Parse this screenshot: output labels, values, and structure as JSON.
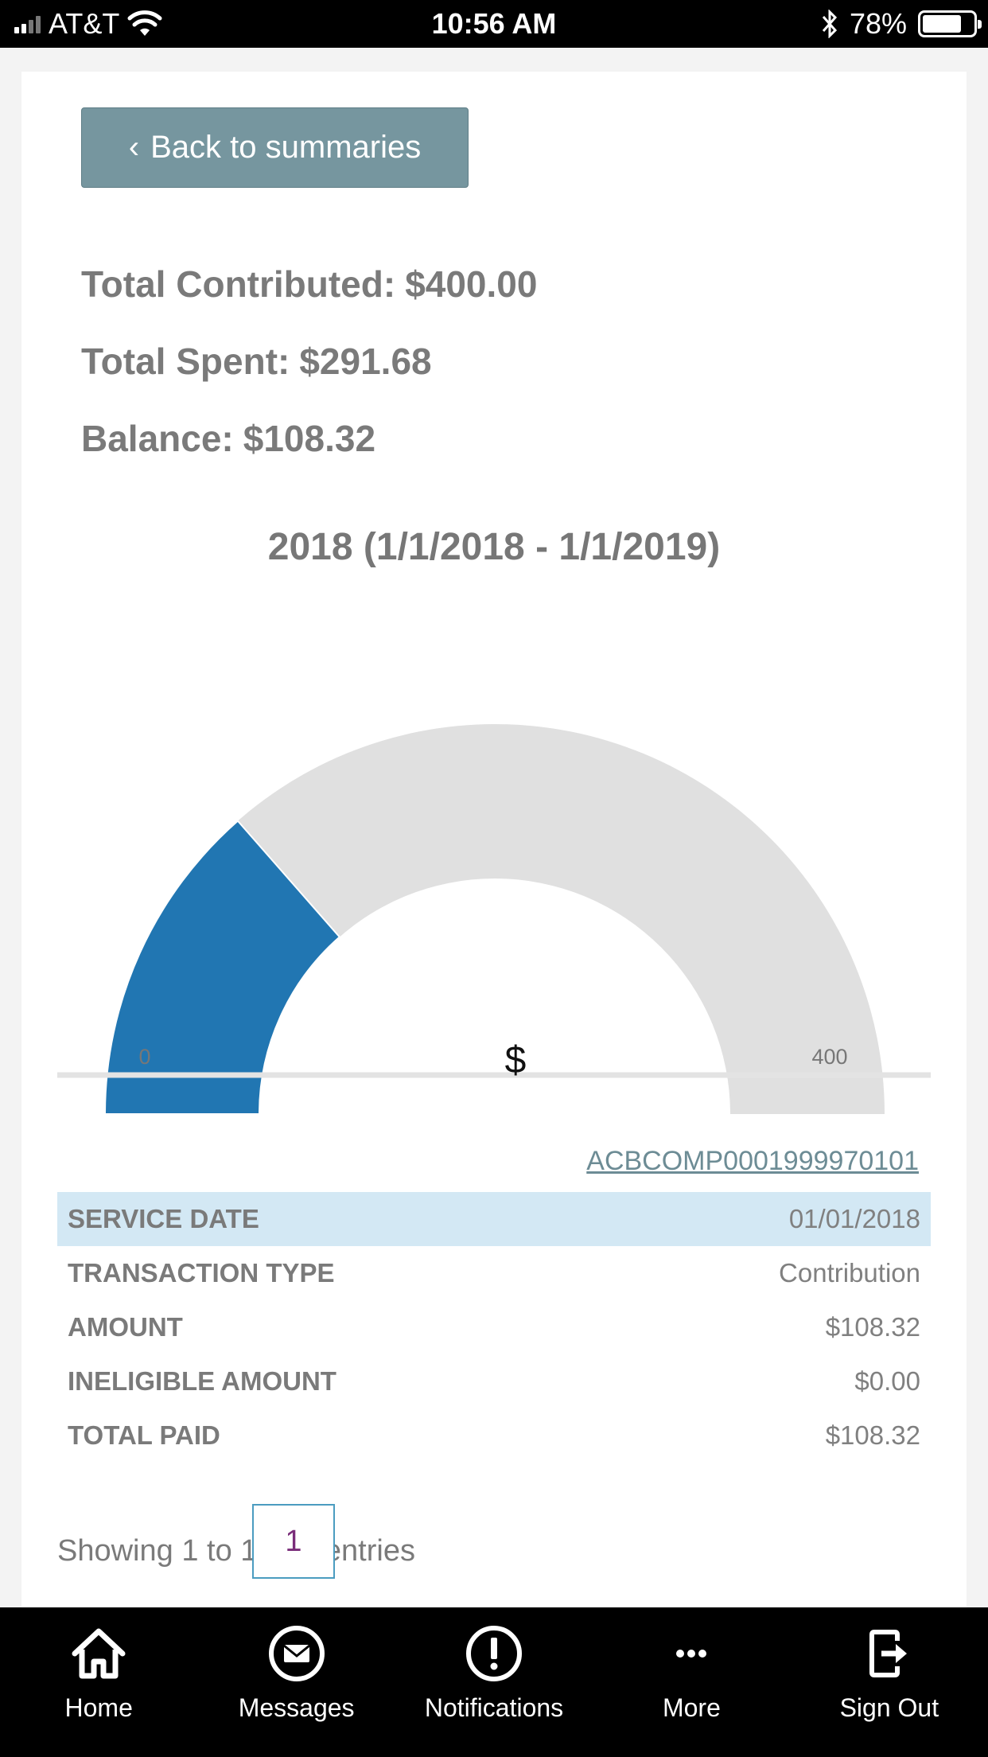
{
  "status_bar": {
    "carrier": "AT&T",
    "time": "10:56 AM",
    "battery": "78%",
    "battery_level": 0.78
  },
  "back_button": {
    "label": "Back to summaries"
  },
  "summary": {
    "contributed_label": "Total Contributed:",
    "contributed_value": "$400.00",
    "spent_label": "Total Spent:",
    "spent_value": "$291.68",
    "balance_label": "Balance:",
    "balance_value": "$108.32"
  },
  "period_title": "2018 (1/1/2018 - 1/1/2019)",
  "chart_data": {
    "type": "gauge",
    "min": 0,
    "max": 400,
    "value": 108.32,
    "min_label": "0",
    "max_label": "400",
    "center_label": "$",
    "colors": {
      "value": "#2176b2",
      "track": "#e0e0e0"
    }
  },
  "account_link": "ACBCOMP0001999970101",
  "transaction": {
    "rows": [
      {
        "key": "SERVICE DATE",
        "value": "01/01/2018"
      },
      {
        "key": "TRANSACTION TYPE",
        "value": "Contribution"
      },
      {
        "key": "AMOUNT",
        "value": "$108.32"
      },
      {
        "key": "INELIGIBLE AMOUNT",
        "value": "$0.00"
      },
      {
        "key": "TOTAL PAID",
        "value": "$108.32"
      }
    ]
  },
  "pagination": {
    "showing": "Showing 1 to 1 of 1 entries",
    "current_page": "1"
  },
  "tabs": [
    {
      "label": "Home",
      "icon": "home-icon"
    },
    {
      "label": "Messages",
      "icon": "envelope-icon"
    },
    {
      "label": "Notifications",
      "icon": "alert-icon"
    },
    {
      "label": "More",
      "icon": "more-icon"
    },
    {
      "label": "Sign Out",
      "icon": "sign-out-icon"
    }
  ]
}
